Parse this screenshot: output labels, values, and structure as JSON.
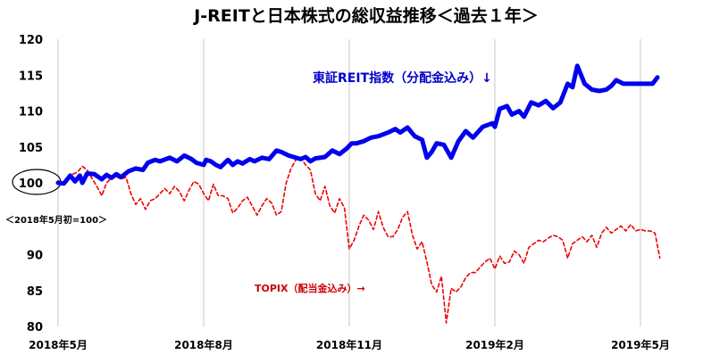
{
  "chart_data": {
    "type": "line",
    "title": "J-REITと日本株式の総収益推移＜過去１年＞",
    "base_note": "＜2018年5月初=100＞",
    "ylim": [
      80,
      120
    ],
    "yticks": [
      "120",
      "115",
      "110",
      "105",
      "100",
      "90",
      "85",
      "80"
    ],
    "x_ticks": [
      {
        "label": "2018年5月",
        "t": 0
      },
      {
        "label": "2018年8月",
        "t": 3
      },
      {
        "label": "2018年11月",
        "t": 6
      },
      {
        "label": "2019年2月",
        "t": 9
      },
      {
        "label": "2019年5月",
        "t": 12
      }
    ],
    "x_range_months": [
      0,
      12.7
    ],
    "grid": "vertical",
    "colors": {
      "reit": "#0000ee",
      "topix": "#ee0000",
      "grid": "#c8c8c8"
    },
    "series": [
      {
        "name": "東証REIT指数（分配金込み）↓",
        "key": "reit",
        "style": "solid",
        "x": [
          0.0,
          0.12,
          0.25,
          0.35,
          0.45,
          0.5,
          0.6,
          0.75,
          0.9,
          1.0,
          1.1,
          1.2,
          1.3,
          1.45,
          1.6,
          1.75,
          1.85,
          2.0,
          2.1,
          2.3,
          2.45,
          2.6,
          2.75,
          2.85,
          3.0,
          3.05,
          3.15,
          3.25,
          3.35,
          3.5,
          3.6,
          3.7,
          3.8,
          3.95,
          4.05,
          4.2,
          4.35,
          4.5,
          4.6,
          4.75,
          4.85,
          5.0,
          5.1,
          5.2,
          5.3,
          5.5,
          5.65,
          5.8,
          5.95,
          6.05,
          6.15,
          6.3,
          6.45,
          6.6,
          6.8,
          6.95,
          7.05,
          7.2,
          7.35,
          7.5,
          7.6,
          7.7,
          7.8,
          7.95,
          8.1,
          8.25,
          8.4,
          8.55,
          8.75,
          8.95,
          9.0,
          9.1,
          9.25,
          9.35,
          9.5,
          9.6,
          9.75,
          9.9,
          10.05,
          10.2,
          10.35,
          10.5,
          10.6,
          10.7,
          10.85,
          11.0,
          11.15,
          11.3,
          11.4,
          11.5,
          11.65,
          11.8,
          11.95,
          12.1,
          12.25,
          12.35
        ],
        "values": [
          100.0,
          99.9,
          101.0,
          100.2,
          101.0,
          100.0,
          101.3,
          101.2,
          100.5,
          101.1,
          100.7,
          101.2,
          100.8,
          101.6,
          102.0,
          101.8,
          102.8,
          103.2,
          103.0,
          103.5,
          103.0,
          103.8,
          103.3,
          102.8,
          102.5,
          103.2,
          103.0,
          102.5,
          102.2,
          103.2,
          102.5,
          103.0,
          102.7,
          103.3,
          103.0,
          103.5,
          103.3,
          104.5,
          104.3,
          103.8,
          103.6,
          103.3,
          103.6,
          103.0,
          103.4,
          103.6,
          104.5,
          104.0,
          104.8,
          105.5,
          105.5,
          105.8,
          106.3,
          106.5,
          107.0,
          107.5,
          107.0,
          107.7,
          106.5,
          106.0,
          103.5,
          104.3,
          105.5,
          105.3,
          103.5,
          105.8,
          107.2,
          106.3,
          107.8,
          108.3,
          107.8,
          110.3,
          110.7,
          109.5,
          110.0,
          109.2,
          111.2,
          110.8,
          111.4,
          110.4,
          111.2,
          113.8,
          113.3,
          116.3,
          113.8,
          113.0,
          112.8,
          113.0,
          113.5,
          114.3,
          113.8,
          113.8,
          113.8,
          113.8,
          113.8,
          114.7
        ]
      },
      {
        "name": "TOPIX（配当金込み）→",
        "key": "topix",
        "style": "dashed",
        "x": [
          0.0,
          0.1,
          0.2,
          0.3,
          0.4,
          0.5,
          0.6,
          0.7,
          0.8,
          0.9,
          1.0,
          1.1,
          1.2,
          1.3,
          1.4,
          1.5,
          1.6,
          1.7,
          1.8,
          1.9,
          2.0,
          2.1,
          2.2,
          2.3,
          2.4,
          2.5,
          2.6,
          2.7,
          2.8,
          2.9,
          3.0,
          3.1,
          3.2,
          3.3,
          3.4,
          3.5,
          3.6,
          3.7,
          3.8,
          3.9,
          4.0,
          4.1,
          4.2,
          4.3,
          4.4,
          4.5,
          4.6,
          4.7,
          4.8,
          4.9,
          5.0,
          5.1,
          5.2,
          5.3,
          5.4,
          5.5,
          5.6,
          5.7,
          5.8,
          5.9,
          6.0,
          6.1,
          6.2,
          6.3,
          6.4,
          6.5,
          6.6,
          6.7,
          6.8,
          6.9,
          7.0,
          7.1,
          7.2,
          7.3,
          7.4,
          7.5,
          7.6,
          7.7,
          7.8,
          7.9,
          8.0,
          8.1,
          8.2,
          8.3,
          8.4,
          8.5,
          8.6,
          8.7,
          8.8,
          8.9,
          9.0,
          9.1,
          9.2,
          9.3,
          9.4,
          9.5,
          9.6,
          9.7,
          9.8,
          9.9,
          10.0,
          10.1,
          10.2,
          10.3,
          10.4,
          10.5,
          10.6,
          10.7,
          10.8,
          10.9,
          11.0,
          11.1,
          11.2,
          11.3,
          11.4,
          11.5,
          11.6,
          11.7,
          11.8,
          11.9,
          12.0,
          12.1,
          12.2,
          12.3,
          12.4
        ],
        "values": [
          100.3,
          100.0,
          100.5,
          101.2,
          101.5,
          102.3,
          101.8,
          100.6,
          99.5,
          98.2,
          100.0,
          100.7,
          100.9,
          100.5,
          100.8,
          98.5,
          97.0,
          97.8,
          96.3,
          97.5,
          97.8,
          98.5,
          99.2,
          98.5,
          99.5,
          98.8,
          97.5,
          99.0,
          100.2,
          99.8,
          98.5,
          97.5,
          99.8,
          98.2,
          98.2,
          97.8,
          95.8,
          96.5,
          97.5,
          98.0,
          96.8,
          95.5,
          96.8,
          97.8,
          97.2,
          95.5,
          96.0,
          100.0,
          102.0,
          103.2,
          103.5,
          102.5,
          101.8,
          98.5,
          97.5,
          99.5,
          96.8,
          95.8,
          97.8,
          96.5,
          90.8,
          92.0,
          94.0,
          95.5,
          94.8,
          93.5,
          96.0,
          93.8,
          92.5,
          92.5,
          93.5,
          95.2,
          96.0,
          92.8,
          90.8,
          91.8,
          89.0,
          85.8,
          84.8,
          87.0,
          80.5,
          85.3,
          84.8,
          85.5,
          86.8,
          87.5,
          87.5,
          88.3,
          89.0,
          89.5,
          88.0,
          89.8,
          88.8,
          89.0,
          90.5,
          90.0,
          88.8,
          91.0,
          91.5,
          92.0,
          91.8,
          92.3,
          92.7,
          92.5,
          92.0,
          89.5,
          91.5,
          92.0,
          92.5,
          91.8,
          92.7,
          91.0,
          93.0,
          93.8,
          93.0,
          93.5,
          94.0,
          93.3,
          94.2,
          93.3,
          93.5,
          93.3,
          93.3,
          93.0,
          89.5
        ]
      }
    ]
  },
  "annotations": {
    "reit_label": "東証REIT指数（分配金込み）↓",
    "topix_label": "TOPIX（配当金込み）→"
  }
}
